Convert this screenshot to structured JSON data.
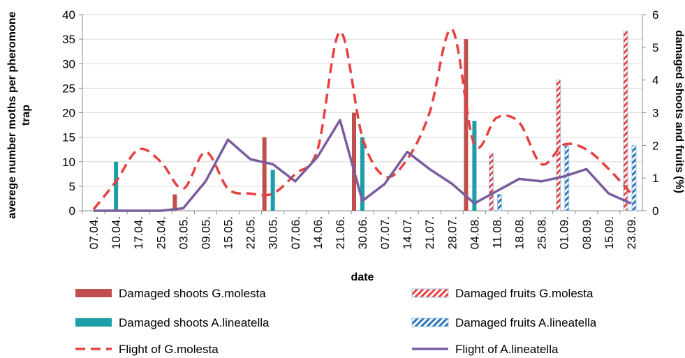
{
  "chart_data": {
    "type": "bar-line",
    "x_label": "date",
    "y_label": "averege number moths per pheromone trap",
    "y2_label": "damaged shoots and fruits (%)",
    "categories": [
      "07.04.",
      "10.04.",
      "17.04.",
      "25.04.",
      "03.05.",
      "09.05.",
      "15.05.",
      "22.05.",
      "30.05.",
      "07.06.",
      "14.06.",
      "21.06.",
      "30.06.",
      "07.07.",
      "14.07.",
      "21.07.",
      "28.07.",
      "04.08.",
      "11.08.",
      "18.08.",
      "25.08.",
      "01.09.",
      "08.09.",
      "15.09.",
      "23.09."
    ],
    "ylim": [
      0,
      40
    ],
    "yticks": [
      0,
      5,
      10,
      15,
      20,
      25,
      30,
      35,
      40
    ],
    "y2lim": [
      0,
      6
    ],
    "y2ticks": [
      0,
      1,
      2,
      3,
      4,
      5,
      6
    ],
    "grid": true,
    "series": [
      {
        "name": "Damaged shoots G.molesta",
        "type": "bar",
        "axis": "y2",
        "color": "#c0504d",
        "hatch": false,
        "values": [
          null,
          null,
          null,
          null,
          0.5,
          null,
          null,
          null,
          2.25,
          null,
          null,
          null,
          3,
          null,
          null,
          null,
          null,
          5.25,
          null,
          null,
          null,
          null,
          null,
          null,
          null
        ]
      },
      {
        "name": "Damaged fruits G.molesta",
        "type": "bar",
        "axis": "y2",
        "color": "#e84040",
        "hatch": true,
        "values": [
          null,
          null,
          null,
          null,
          null,
          null,
          null,
          null,
          null,
          null,
          null,
          null,
          null,
          null,
          null,
          null,
          null,
          null,
          1.75,
          null,
          null,
          4,
          null,
          null,
          5.5
        ]
      },
      {
        "name": "Damaged shoots A.lineatella",
        "type": "bar",
        "axis": "y2",
        "color": "#1b9ea8",
        "hatch": false,
        "values": [
          null,
          1.5,
          null,
          null,
          null,
          null,
          null,
          null,
          1.25,
          null,
          null,
          null,
          2.25,
          null,
          null,
          null,
          null,
          2.75,
          null,
          null,
          null,
          null,
          null,
          null,
          null
        ]
      },
      {
        "name": "Damaged fruits A.lineatella",
        "type": "bar",
        "axis": "y2",
        "color": "#2e75b6",
        "hatch": true,
        "values": [
          null,
          null,
          null,
          null,
          null,
          null,
          null,
          null,
          null,
          null,
          null,
          null,
          null,
          null,
          null,
          null,
          null,
          null,
          0.5,
          null,
          null,
          2,
          null,
          null,
          2
        ]
      },
      {
        "name": "Flight of G.molesta",
        "type": "line",
        "color": "#e84040",
        "dashed": true,
        "values": [
          0.3,
          6,
          12.5,
          10,
          4.5,
          12,
          4.5,
          3.5,
          3.5,
          7.5,
          12.5,
          36.5,
          15,
          7,
          10.5,
          20,
          37,
          13.5,
          19,
          18,
          9.5,
          13.5,
          12.5,
          8.5,
          3.5
        ]
      },
      {
        "name": "Flight of A.lineatella",
        "type": "line",
        "color": "#7a5c9e",
        "dashed": false,
        "values": [
          0,
          0,
          0,
          0,
          0.5,
          6,
          14.5,
          10.5,
          9.5,
          6,
          11,
          18.5,
          2,
          5.5,
          12,
          8.5,
          5.5,
          1.5,
          4,
          6.5,
          6,
          7,
          8.5,
          3.5,
          1.5
        ]
      }
    ]
  }
}
